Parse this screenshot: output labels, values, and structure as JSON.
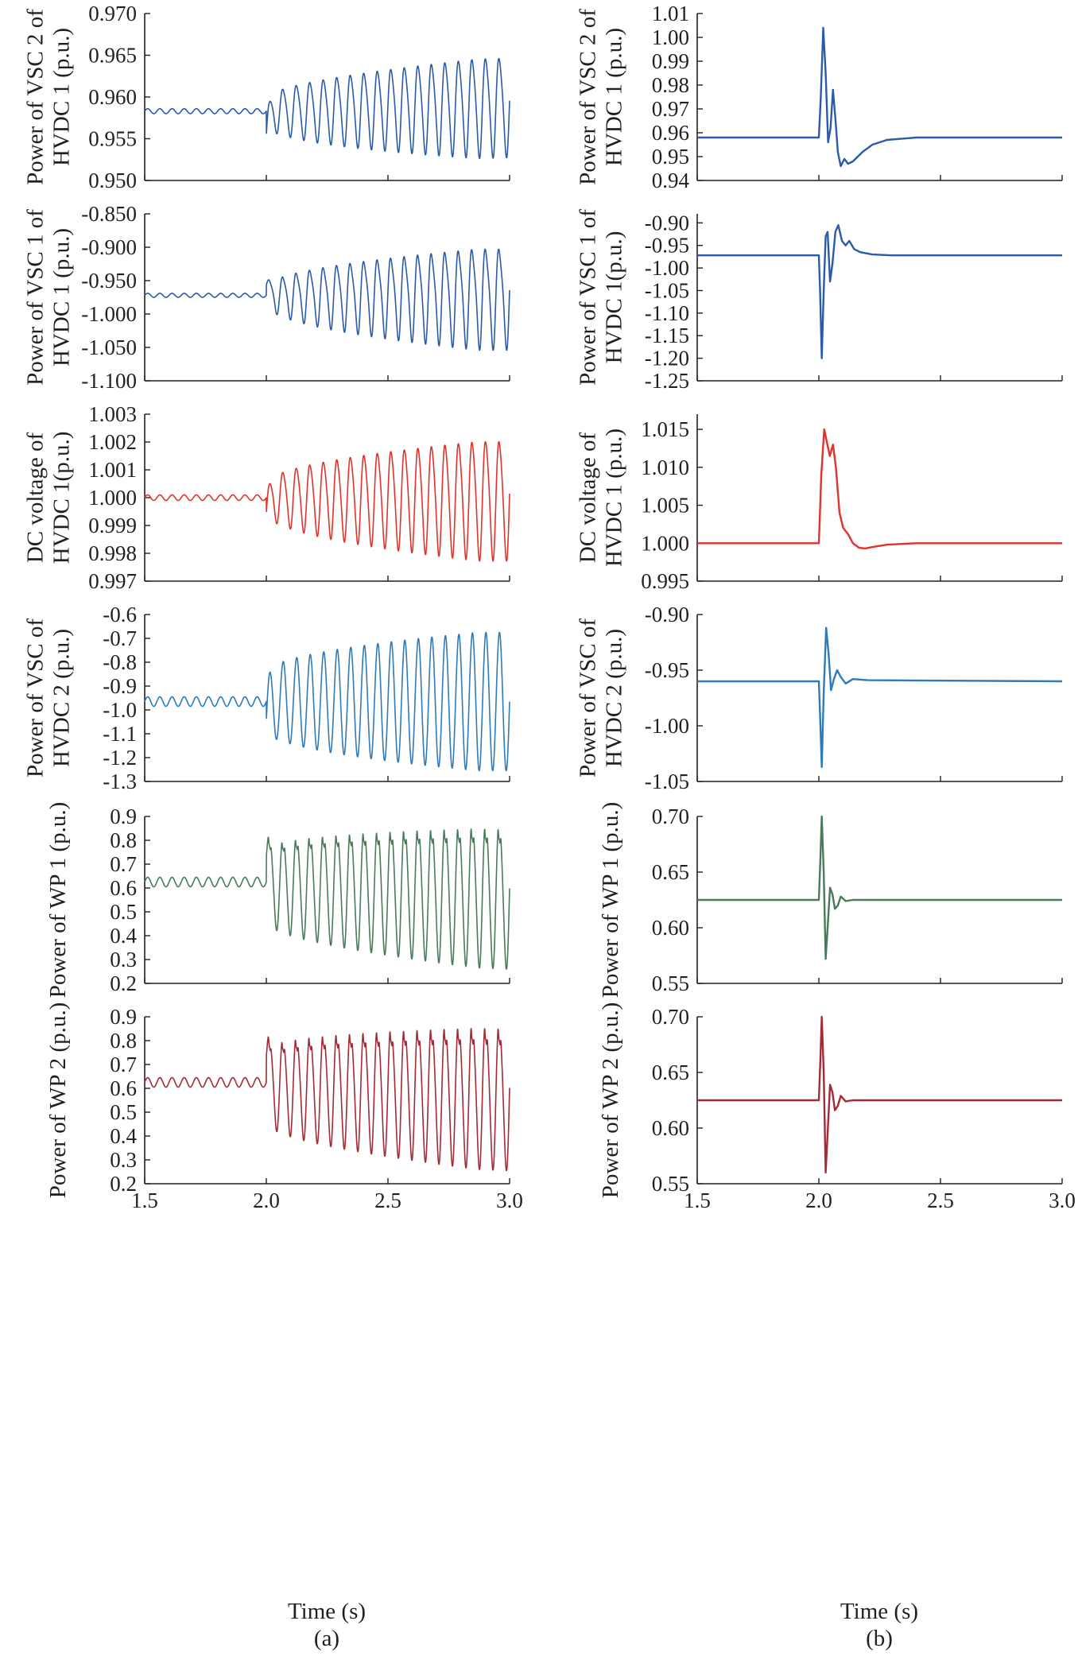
{
  "figure": {
    "panel_labels": [
      "(a)",
      "(b)"
    ],
    "x_axis_title": "Time (s)"
  },
  "chart_data": [
    {
      "id": "a1",
      "type": "line",
      "color": "#2b5aa8",
      "ylabel_lines": [
        "Power of VSC 2 of",
        "HVDC 1 (p.u.)"
      ],
      "xlim": [
        1.5,
        3.0
      ],
      "xticks": [
        "1.5",
        "2.0",
        "2.5",
        "3.0"
      ],
      "ylim": [
        0.95,
        0.97
      ],
      "yticks": [
        "0.970",
        "0.965",
        "0.960",
        "0.955",
        "0.950"
      ],
      "signal": {
        "base": 0.9583,
        "pre_amp": 0.0003,
        "pre_freq": 20,
        "t_event": 2.0,
        "post_freq": 18,
        "amp0": 0.0015,
        "amp1": 0.0058,
        "post_offset": 0.0008,
        "initial_kick": -0.003,
        "ripple": 0.4
      }
    },
    {
      "id": "b1",
      "type": "line",
      "color": "#2b5aa8",
      "ylabel_lines": [
        "Power of VSC 2 of",
        "HVDC 1 (p.u.)"
      ],
      "xlim": [
        1.5,
        3.0
      ],
      "xticks": [
        "1.5",
        "2.0",
        "2.5",
        "3.0"
      ],
      "ylim": [
        0.94,
        1.01
      ],
      "yticks": [
        "1.01",
        "1.00",
        "0.99",
        "0.98",
        "0.97",
        "0.96",
        "0.95",
        "0.94"
      ],
      "signal": {
        "base": 0.958,
        "t_event": 2.0,
        "points": [
          [
            2.0,
            0.958
          ],
          [
            2.008,
            0.975
          ],
          [
            2.018,
            1.004
          ],
          [
            2.028,
            0.985
          ],
          [
            2.038,
            0.956
          ],
          [
            2.048,
            0.962
          ],
          [
            2.058,
            0.978
          ],
          [
            2.068,
            0.966
          ],
          [
            2.078,
            0.952
          ],
          [
            2.09,
            0.946
          ],
          [
            2.105,
            0.949
          ],
          [
            2.12,
            0.947
          ],
          [
            2.14,
            0.948
          ],
          [
            2.18,
            0.952
          ],
          [
            2.22,
            0.955
          ],
          [
            2.28,
            0.957
          ],
          [
            2.4,
            0.958
          ],
          [
            3.0,
            0.958
          ]
        ]
      }
    },
    {
      "id": "a2",
      "type": "line",
      "color": "#2b5aa8",
      "ylabel_lines": [
        "Power of VSC 1 of",
        "HVDC 1 (p.u.)"
      ],
      "xlim": [
        1.5,
        3.0
      ],
      "xticks": [
        "1.5",
        "2.0",
        "2.5",
        "3.0"
      ],
      "ylim": [
        -1.1,
        -0.85
      ],
      "yticks": [
        "-0.850",
        "-0.900",
        "-0.950",
        "-1.000",
        "-1.050",
        "-1.100"
      ],
      "signal": {
        "base": -0.972,
        "pre_amp": 0.003,
        "pre_freq": 20,
        "t_event": 2.0,
        "post_freq": 18,
        "amp0": 0.012,
        "amp1": 0.072,
        "post_offset": 0.0,
        "initial_kick": 0.015,
        "ripple": 0.55
      }
    },
    {
      "id": "b2",
      "type": "line",
      "color": "#2b5aa8",
      "ylabel_lines": [
        "Power of VSC 1 of",
        "HVDC 1(p.u.)"
      ],
      "xlim": [
        1.5,
        3.0
      ],
      "xticks": [
        "1.5",
        "2.0",
        "2.5",
        "3.0"
      ],
      "ylim": [
        -1.25,
        -0.88
      ],
      "yticks": [
        "-0.90",
        "-0.95",
        "-1.00",
        "-1.05",
        "-1.10",
        "-1.15",
        "-1.20",
        "-1.25"
      ],
      "signal": {
        "base": -0.972,
        "t_event": 2.0,
        "points": [
          [
            2.0,
            -0.972
          ],
          [
            2.005,
            -1.05
          ],
          [
            2.012,
            -1.2
          ],
          [
            2.02,
            -1.05
          ],
          [
            2.028,
            -0.93
          ],
          [
            2.036,
            -0.92
          ],
          [
            2.046,
            -1.03
          ],
          [
            2.056,
            -0.99
          ],
          [
            2.068,
            -0.92
          ],
          [
            2.08,
            -0.905
          ],
          [
            2.095,
            -0.94
          ],
          [
            2.11,
            -0.95
          ],
          [
            2.125,
            -0.94
          ],
          [
            2.145,
            -0.958
          ],
          [
            2.17,
            -0.965
          ],
          [
            2.22,
            -0.97
          ],
          [
            2.3,
            -0.972
          ],
          [
            3.0,
            -0.972
          ]
        ]
      }
    },
    {
      "id": "a3",
      "type": "line",
      "color": "#e2322b",
      "ylabel_lines": [
        "DC voltage of",
        "HVDC 1(p.u.)"
      ],
      "xlim": [
        1.5,
        3.0
      ],
      "xticks": [
        "1.5",
        "2.0",
        "2.5",
        "3.0"
      ],
      "ylim": [
        0.997,
        1.003
      ],
      "yticks": [
        "1.003",
        "1.002",
        "1.001",
        "1.000",
        "0.999",
        "0.998",
        "0.997"
      ],
      "signal": {
        "base": 1.0,
        "pre_amp": 0.0001,
        "pre_freq": 20,
        "t_event": 2.0,
        "post_freq": 18,
        "amp0": 0.0005,
        "amp1": 0.0021,
        "post_offset": 0.0,
        "initial_kick": -0.0006,
        "ripple": 0.35
      }
    },
    {
      "id": "b3",
      "type": "line",
      "color": "#e2322b",
      "ylabel_lines": [
        "DC voltage of",
        "HVDC 1 (p.u.)"
      ],
      "xlim": [
        1.5,
        3.0
      ],
      "xticks": [
        "1.5",
        "2.0",
        "2.5",
        "3.0"
      ],
      "ylim": [
        0.995,
        1.017
      ],
      "yticks": [
        "1.015",
        "1.010",
        "1.005",
        "1.000",
        "0.995"
      ],
      "signal": {
        "base": 1.0,
        "t_event": 2.0,
        "points": [
          [
            2.0,
            1.0
          ],
          [
            2.01,
            1.009
          ],
          [
            2.022,
            1.015
          ],
          [
            2.035,
            1.013
          ],
          [
            2.045,
            1.0115
          ],
          [
            2.058,
            1.013
          ],
          [
            2.07,
            1.01
          ],
          [
            2.085,
            1.004
          ],
          [
            2.1,
            1.002
          ],
          [
            2.12,
            1.0012
          ],
          [
            2.14,
            1.0
          ],
          [
            2.165,
            0.9994
          ],
          [
            2.19,
            0.9993
          ],
          [
            2.22,
            0.9995
          ],
          [
            2.28,
            0.9998
          ],
          [
            2.4,
            1.0
          ],
          [
            3.0,
            1.0
          ]
        ]
      }
    },
    {
      "id": "a4",
      "type": "line",
      "color": "#2f7ab8",
      "ylabel_lines": [
        "Power of VSC of",
        "HVDC 2 (p.u.)"
      ],
      "xlim": [
        1.5,
        3.0
      ],
      "xticks": [
        "1.5",
        "2.0",
        "2.5",
        "3.0"
      ],
      "ylim": [
        -1.3,
        -0.6
      ],
      "yticks": [
        "-0.6",
        "-0.7",
        "-0.8",
        "-0.9",
        "-1.0",
        "-1.1",
        "-1.2",
        "-1.3"
      ],
      "signal": {
        "base": -0.965,
        "pre_amp": 0.02,
        "pre_freq": 20,
        "t_event": 2.0,
        "post_freq": 18,
        "amp0": 0.12,
        "amp1": 0.29,
        "post_offset": 0.0,
        "initial_kick": -0.08,
        "ripple": 0.0
      }
    },
    {
      "id": "b4",
      "type": "line",
      "color": "#2f7ab8",
      "ylabel_lines": [
        "Power of VSC of",
        "HVDC 2 (p.u.)"
      ],
      "xlim": [
        1.5,
        3.0
      ],
      "xticks": [
        "1.5",
        "2.0",
        "2.5",
        "3.0"
      ],
      "ylim": [
        -1.05,
        -0.9
      ],
      "yticks": [
        "-0.90",
        "-0.95",
        "-1.00",
        "-1.05"
      ],
      "signal": {
        "base": -0.96,
        "t_event": 2.0,
        "points": [
          [
            2.0,
            -0.96
          ],
          [
            2.005,
            -0.99
          ],
          [
            2.012,
            -1.037
          ],
          [
            2.02,
            -0.97
          ],
          [
            2.03,
            -0.912
          ],
          [
            2.04,
            -0.935
          ],
          [
            2.05,
            -0.968
          ],
          [
            2.062,
            -0.958
          ],
          [
            2.075,
            -0.95
          ],
          [
            2.09,
            -0.956
          ],
          [
            2.11,
            -0.962
          ],
          [
            2.14,
            -0.958
          ],
          [
            2.2,
            -0.959
          ],
          [
            3.0,
            -0.96
          ]
        ]
      }
    },
    {
      "id": "a5",
      "type": "line",
      "color": "#4a7a5c",
      "ylabel_lines": [
        "Power of WP 1 (p.u.)"
      ],
      "xlim": [
        1.5,
        3.0
      ],
      "xticks": [
        "1.5",
        "2.0",
        "2.5",
        "3.0"
      ],
      "ylim": [
        0.2,
        0.9
      ],
      "yticks": [
        "0.9",
        "0.8",
        "0.7",
        "0.6",
        "0.5",
        "0.4",
        "0.3",
        "0.2"
      ],
      "signal": {
        "base": 0.625,
        "pre_amp": 0.02,
        "pre_freq": 20,
        "t_event": 2.0,
        "post_freq": 18,
        "amp0": 0.16,
        "amp1": 0.31,
        "post_offset": -0.04,
        "initial_kick": 0.1,
        "ripple": 0.22,
        "dip": 0.12
      }
    },
    {
      "id": "b5",
      "type": "line",
      "color": "#4a7a5c",
      "ylabel_lines": [
        "Power of WP 1 (p.u.)"
      ],
      "xlim": [
        1.5,
        3.0
      ],
      "xticks": [
        "1.5",
        "2.0",
        "2.5",
        "3.0"
      ],
      "ylim": [
        0.55,
        0.7
      ],
      "yticks": [
        "0.70",
        "0.65",
        "0.60",
        "0.55"
      ],
      "signal": {
        "base": 0.625,
        "t_event": 2.0,
        "points": [
          [
            2.0,
            0.625
          ],
          [
            2.006,
            0.66
          ],
          [
            2.012,
            0.7
          ],
          [
            2.02,
            0.65
          ],
          [
            2.028,
            0.572
          ],
          [
            2.036,
            0.6
          ],
          [
            2.046,
            0.636
          ],
          [
            2.056,
            0.63
          ],
          [
            2.066,
            0.617
          ],
          [
            2.078,
            0.62
          ],
          [
            2.09,
            0.628
          ],
          [
            2.11,
            0.624
          ],
          [
            2.14,
            0.625
          ],
          [
            3.0,
            0.625
          ]
        ]
      }
    },
    {
      "id": "a6",
      "type": "line",
      "color": "#a52a36",
      "ylabel_lines": [
        "Power of WP 2 (p.u.)"
      ],
      "xlim": [
        1.5,
        3.0
      ],
      "xticks": [
        "1.5",
        "2.0",
        "2.5",
        "3.0"
      ],
      "ylim": [
        0.2,
        0.9
      ],
      "yticks": [
        "0.9",
        "0.8",
        "0.7",
        "0.6",
        "0.5",
        "0.4",
        "0.3",
        "0.2"
      ],
      "signal": {
        "base": 0.625,
        "pre_amp": 0.02,
        "pre_freq": 20,
        "t_event": 2.0,
        "post_freq": 18,
        "amp0": 0.16,
        "amp1": 0.31,
        "post_offset": -0.04,
        "initial_kick": 0.1,
        "ripple": 0.28,
        "dip": 0.12
      }
    },
    {
      "id": "b6",
      "type": "line",
      "color": "#a52a36",
      "ylabel_lines": [
        "Power of WP 2 (p.u.)"
      ],
      "xlim": [
        1.5,
        3.0
      ],
      "xticks": [
        "1.5",
        "2.0",
        "2.5",
        "3.0"
      ],
      "ylim": [
        0.55,
        0.7
      ],
      "yticks": [
        "0.70",
        "0.65",
        "0.60",
        "0.55"
      ],
      "signal": {
        "base": 0.625,
        "t_event": 2.0,
        "points": [
          [
            2.0,
            0.625
          ],
          [
            2.006,
            0.66
          ],
          [
            2.012,
            0.7
          ],
          [
            2.02,
            0.65
          ],
          [
            2.028,
            0.56
          ],
          [
            2.036,
            0.595
          ],
          [
            2.046,
            0.639
          ],
          [
            2.056,
            0.632
          ],
          [
            2.066,
            0.616
          ],
          [
            2.078,
            0.62
          ],
          [
            2.09,
            0.629
          ],
          [
            2.11,
            0.624
          ],
          [
            2.14,
            0.625
          ],
          [
            3.0,
            0.625
          ]
        ]
      }
    }
  ]
}
